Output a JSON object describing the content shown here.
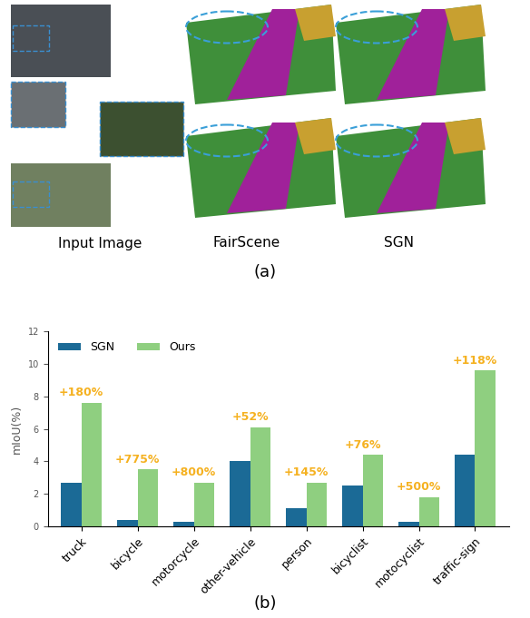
{
  "figure": {
    "panel_a": {
      "caption": "(a)",
      "column_labels": [
        "Input Image",
        "FairScene",
        "SGN"
      ]
    }
  },
  "chart_data": {
    "type": "bar",
    "caption": "(b)",
    "y_label": "mIoU(%)",
    "categories": [
      "truck",
      "bicycle",
      "motorcycle",
      "other-vehicle",
      "person",
      "bicyclist",
      "motocyclist",
      "traffic-sign"
    ],
    "series": [
      {
        "name": "SGN",
        "color": "#1b6a96",
        "values": [
          2.7,
          0.4,
          0.3,
          4.0,
          1.1,
          2.5,
          0.3,
          4.4
        ]
      },
      {
        "name": "Ours",
        "color": "#8fcf80",
        "values": [
          7.6,
          3.5,
          2.7,
          6.1,
          2.7,
          4.4,
          1.8,
          9.6
        ]
      }
    ],
    "annotations": [
      "+180%",
      "+775%",
      "+800%",
      "+52%",
      "+145%",
      "+76%",
      "+500%",
      "+118%"
    ],
    "ylim": [
      0,
      12
    ],
    "yticks": [
      0,
      2,
      4,
      6,
      8,
      10,
      12
    ],
    "legend": "upper left",
    "grid": false
  }
}
